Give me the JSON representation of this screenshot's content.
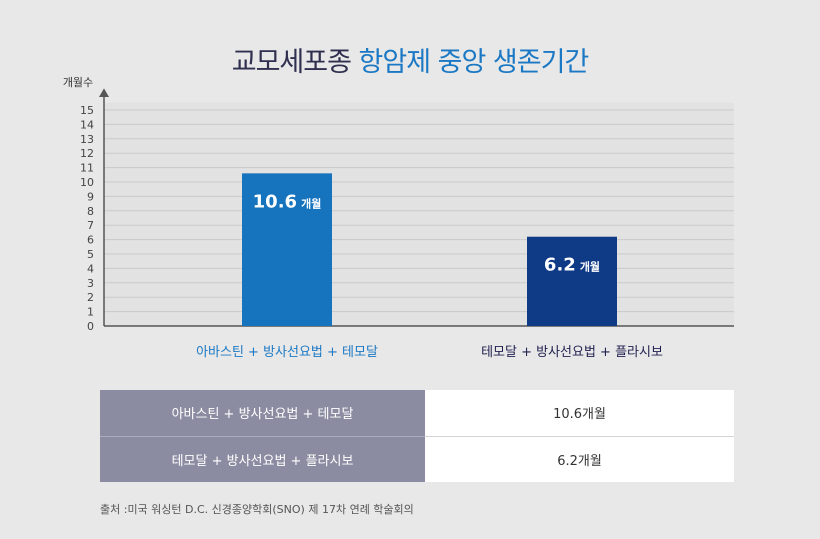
{
  "title": {
    "part1": "교모세포종",
    "part2": "항암제 중앙 생존기간"
  },
  "chart_data": {
    "type": "bar",
    "title": "교모세포종 항암제 중앙 생존기간",
    "ylabel": "개월수",
    "ylim": [
      0,
      15
    ],
    "yticks": [
      "0",
      "1",
      "2",
      "3",
      "4",
      "5",
      "6",
      "7",
      "8",
      "9",
      "10",
      "11",
      "12",
      "13",
      "14",
      "15"
    ],
    "categories": [
      "아바스틴 + 방사선요법 + 테모달",
      "테모달 + 방사선요법 + 플라시보"
    ],
    "values": [
      10.6,
      6.2
    ],
    "value_labels": [
      "10.6",
      "6.2"
    ],
    "value_unit": "개월",
    "bar_colors": [
      "#1673be",
      "#0f3a86"
    ],
    "category_colors": [
      "#1b78c4",
      "#1f1f4f"
    ],
    "grid": true
  },
  "table": {
    "rows": [
      {
        "label": "아바스틴 + 방사선요법 + 테모달",
        "value": "10.6개월"
      },
      {
        "label": "테모달 + 방사선요법 + 플라시보",
        "value": "6.2개월"
      }
    ]
  },
  "source": "출처 :미국 워싱턴 D.C. 신경종양학회(SNO) 제 17차 연례 학술회의"
}
